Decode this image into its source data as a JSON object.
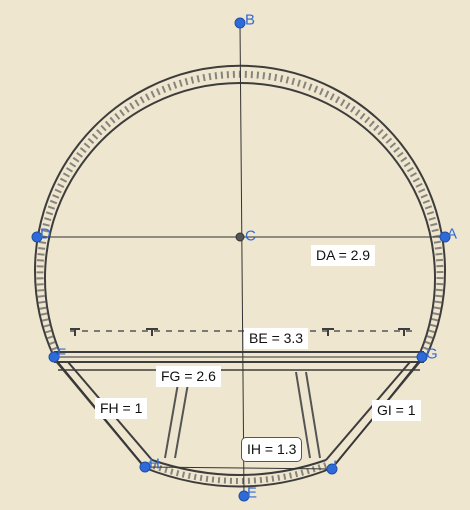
{
  "colors": {
    "background": "#efe6cf",
    "point_fill": "#2f6bd8",
    "point_center": "#555555",
    "construction_line": "#333333",
    "drawing_ink": "#3d3d3d"
  },
  "points": [
    {
      "id": "B",
      "label": "B"
    },
    {
      "id": "C",
      "label": "C"
    },
    {
      "id": "D",
      "label": "D"
    },
    {
      "id": "A",
      "label": "A"
    },
    {
      "id": "F",
      "label": "F"
    },
    {
      "id": "G",
      "label": "G"
    },
    {
      "id": "H",
      "label": "H"
    },
    {
      "id": "I",
      "label": "I"
    },
    {
      "id": "E",
      "label": "E"
    }
  ],
  "measurements": [
    {
      "id": "da",
      "text": "DA = 2.9"
    },
    {
      "id": "be",
      "text": "BE = 3.3"
    },
    {
      "id": "fg",
      "text": "FG = 2.6"
    },
    {
      "id": "fh",
      "text": "FH = 1"
    },
    {
      "id": "gi",
      "text": "GI = 1"
    },
    {
      "id": "ih",
      "text": "IH = 1.3"
    }
  ]
}
